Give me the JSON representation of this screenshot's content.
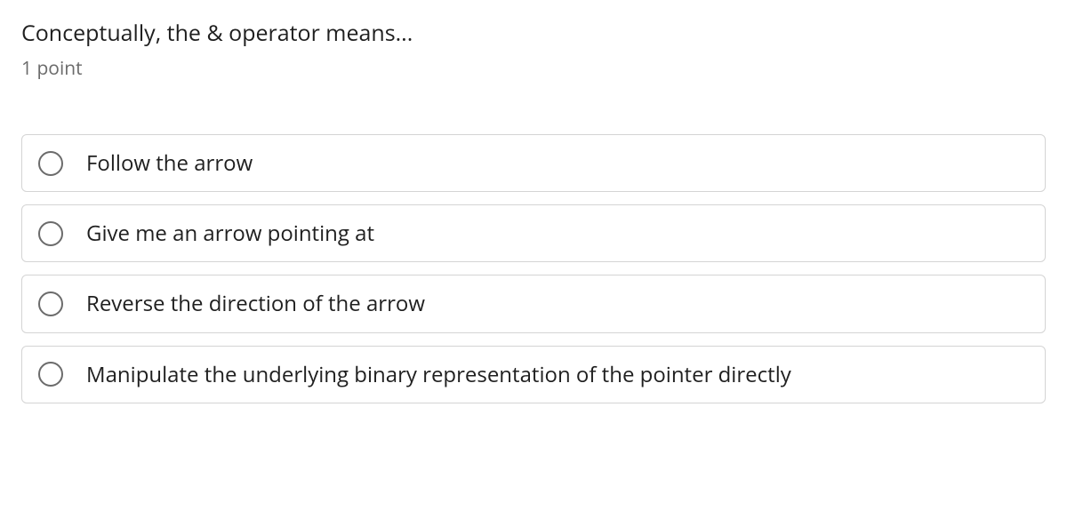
{
  "question": {
    "text": "Conceptually, the & operator means...",
    "points_label": "1 point"
  },
  "options": [
    {
      "label": "Follow the arrow"
    },
    {
      "label": "Give me an arrow pointing at"
    },
    {
      "label": "Reverse the direction of the arrow"
    },
    {
      "label": "Manipulate the underlying binary representation of the pointer directly"
    }
  ],
  "colors": {
    "text_primary": "#1f1f1f",
    "text_secondary": "#6b6b6b",
    "border": "#d4d4d4",
    "radio_border": "#6b6b6b",
    "background": "#ffffff"
  }
}
